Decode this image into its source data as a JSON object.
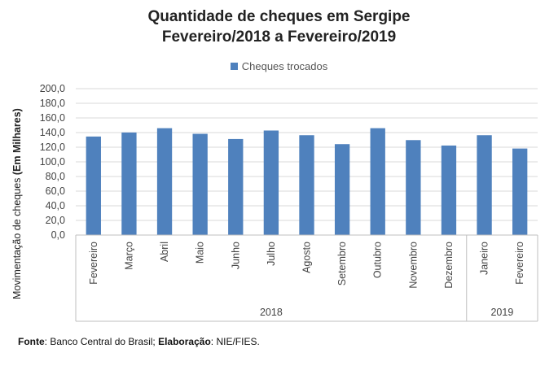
{
  "chart_data": {
    "type": "bar",
    "title": [
      "Quantidade de cheques em Sergipe",
      "Fevereiro/2018 a Fevereiro/2019"
    ],
    "ylabel_prefix": "Movimentação de cheques ",
    "ylabel_bold": "(Em Milhares)",
    "categories": [
      "Fevereiro",
      "Março",
      "Abril",
      "Maio",
      "Junho",
      "Julho",
      "Agosto",
      "Setembro",
      "Outubro",
      "Novembro",
      "Dezembro",
      "Janeiro",
      "Fevereiro"
    ],
    "groups": [
      {
        "label": "2018",
        "count": 11
      },
      {
        "label": "2019",
        "count": 2
      }
    ],
    "series": [
      {
        "name": "Cheques trocados",
        "color": "#4f81bd",
        "values": [
          134.6,
          140.1,
          146.0,
          138.3,
          131.2,
          142.8,
          136.4,
          124.2,
          146.0,
          129.7,
          122.3,
          136.4,
          118.2
        ]
      }
    ],
    "ylim": [
      0,
      200
    ],
    "yticks": [
      "0,0",
      "20,0",
      "40,0",
      "60,0",
      "80,0",
      "100,0",
      "120,0",
      "140,0",
      "160,0",
      "180,0",
      "200,0"
    ],
    "grid": true,
    "legend": "top"
  },
  "footer": {
    "fonte_label": "Fonte",
    "fonte_text": ": Banco Central do Brasil; ",
    "elab_label": "Elaboração",
    "elab_text": ": NIE/FIES."
  }
}
